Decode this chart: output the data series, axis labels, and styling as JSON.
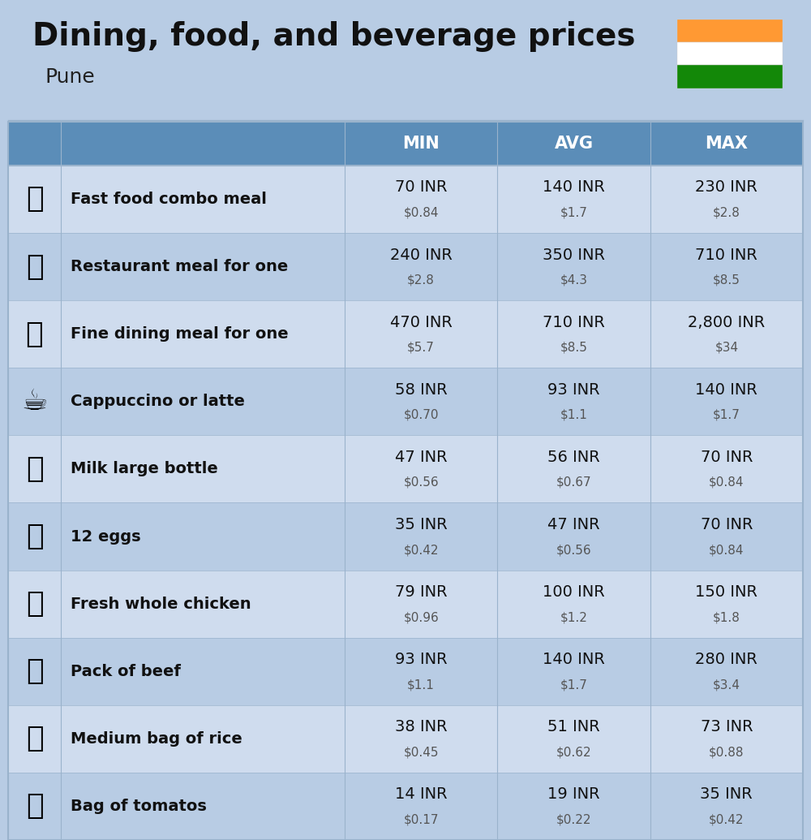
{
  "title": "Dining, food, and beverage prices",
  "subtitle": "Pune",
  "bg_color": "#b8cce4",
  "header_bg": "#5b8db8",
  "header_text_color": "#ffffff",
  "row_bg_even": "#cfdcee",
  "row_bg_odd": "#b8cce4",
  "icon_label_bg_even": "#cfdcee",
  "icon_label_bg_odd": "#b8cce4",
  "col_headers": [
    "MIN",
    "AVG",
    "MAX"
  ],
  "rows": [
    {
      "label": "Fast food combo meal",
      "emoji": "🍔",
      "min_inr": "70 INR",
      "min_usd": "$0.84",
      "avg_inr": "140 INR",
      "avg_usd": "$1.7",
      "max_inr": "230 INR",
      "max_usd": "$2.8"
    },
    {
      "label": "Restaurant meal for one",
      "emoji": "🍳",
      "min_inr": "240 INR",
      "min_usd": "$2.8",
      "avg_inr": "350 INR",
      "avg_usd": "$4.3",
      "max_inr": "710 INR",
      "max_usd": "$8.5"
    },
    {
      "label": "Fine dining meal for one",
      "emoji": "🍽️",
      "min_inr": "470 INR",
      "min_usd": "$5.7",
      "avg_inr": "710 INR",
      "avg_usd": "$8.5",
      "max_inr": "2,800 INR",
      "max_usd": "$34"
    },
    {
      "label": "Cappuccino or latte",
      "emoji": "☕",
      "min_inr": "58 INR",
      "min_usd": "$0.70",
      "avg_inr": "93 INR",
      "avg_usd": "$1.1",
      "max_inr": "140 INR",
      "max_usd": "$1.7"
    },
    {
      "label": "Milk large bottle",
      "emoji": "🥛",
      "min_inr": "47 INR",
      "min_usd": "$0.56",
      "avg_inr": "56 INR",
      "avg_usd": "$0.67",
      "max_inr": "70 INR",
      "max_usd": "$0.84"
    },
    {
      "label": "12 eggs",
      "emoji": "🥚",
      "min_inr": "35 INR",
      "min_usd": "$0.42",
      "avg_inr": "47 INR",
      "avg_usd": "$0.56",
      "max_inr": "70 INR",
      "max_usd": "$0.84"
    },
    {
      "label": "Fresh whole chicken",
      "emoji": "🐔",
      "min_inr": "79 INR",
      "min_usd": "$0.96",
      "avg_inr": "100 INR",
      "avg_usd": "$1.2",
      "max_inr": "150 INR",
      "max_usd": "$1.8"
    },
    {
      "label": "Pack of beef",
      "emoji": "🥩",
      "min_inr": "93 INR",
      "min_usd": "$1.1",
      "avg_inr": "140 INR",
      "avg_usd": "$1.7",
      "max_inr": "280 INR",
      "max_usd": "$3.4"
    },
    {
      "label": "Medium bag of rice",
      "emoji": "🍚",
      "min_inr": "38 INR",
      "min_usd": "$0.45",
      "avg_inr": "51 INR",
      "avg_usd": "$0.62",
      "max_inr": "73 INR",
      "max_usd": "$0.88"
    },
    {
      "label": "Bag of tomatos",
      "emoji": "🍅",
      "min_inr": "14 INR",
      "min_usd": "$0.17",
      "avg_inr": "19 INR",
      "avg_usd": "$0.22",
      "max_inr": "35 INR",
      "max_usd": "$0.42"
    }
  ],
  "india_flag_colors": [
    "#FF9933",
    "#FFFFFF",
    "#138808"
  ],
  "india_flag_chakra": "#000080",
  "title_fontsize": 28,
  "subtitle_fontsize": 18,
  "header_fontsize": 15,
  "label_fontsize": 14,
  "value_fontsize": 14,
  "usd_fontsize": 11
}
